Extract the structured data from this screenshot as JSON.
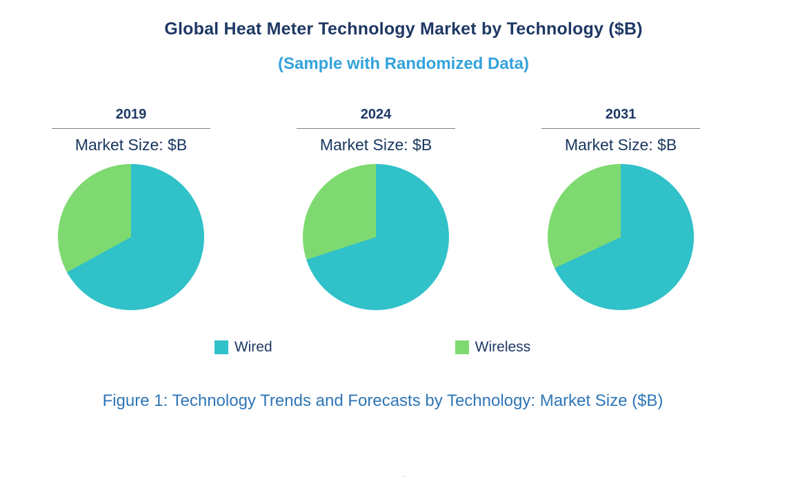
{
  "title": "Global Heat Meter Technology Market by Technology ($B)",
  "subtitle": "(Sample with Randomized Data)",
  "caption": "Figure 1: Technology Trends and Forecasts by Technology: Market Size ($B)",
  "footnote": ".",
  "colors": {
    "wired": "#30C1C9",
    "wireless": "#7EDA70",
    "title": "#1F3864",
    "subtitle": "#33A3DC",
    "caption": "#2E75B6"
  },
  "legend": [
    {
      "label": "Wired",
      "color": "#30C1C9"
    },
    {
      "label": "Wireless",
      "color": "#7EDA70"
    }
  ],
  "chart_data": {
    "type": "pie",
    "title": "Global Heat Meter Technology Market by Technology ($B)",
    "subtitle": "(Sample with Randomized Data)",
    "unit": "$B (percent share shown by slice angle)",
    "legend_position": "bottom",
    "series_names": [
      "Wired",
      "Wireless"
    ],
    "charts": [
      {
        "year": "2019",
        "market_label": "Market Size: $B",
        "slices": [
          {
            "name": "Wired",
            "pct": 67
          },
          {
            "name": "Wireless",
            "pct": 33
          }
        ]
      },
      {
        "year": "2024",
        "market_label": "Market Size: $B",
        "slices": [
          {
            "name": "Wired",
            "pct": 70
          },
          {
            "name": "Wireless",
            "pct": 30
          }
        ]
      },
      {
        "year": "2031",
        "market_label": "Market Size: $B",
        "slices": [
          {
            "name": "Wired",
            "pct": 68
          },
          {
            "name": "Wireless",
            "pct": 32
          }
        ]
      }
    ]
  }
}
